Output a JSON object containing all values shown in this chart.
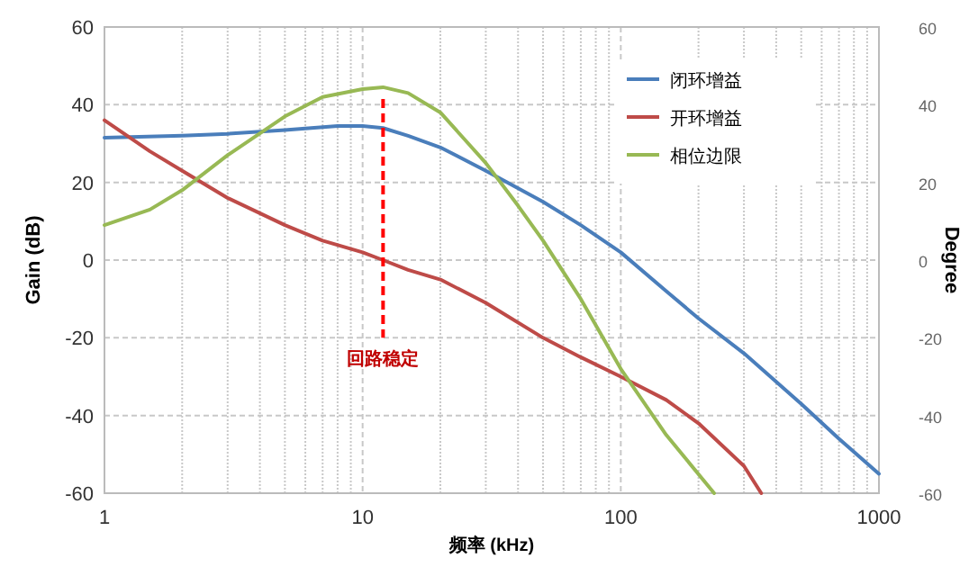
{
  "chart_data": {
    "type": "line",
    "xlabel": "频率 (kHz)",
    "ylabel": "Gain (dB)",
    "y2label": "Degree",
    "log": "x",
    "grid": true,
    "legend": "top right",
    "line_style": "solid",
    "marker": "none",
    "xlim": [
      1,
      1000
    ],
    "ylim": [
      -60,
      60
    ],
    "y2lim": [
      -60,
      60
    ],
    "xticks": [
      1,
      {
        "value": 2,
        "label": null
      },
      {
        "value": 3,
        "label": null
      },
      {
        "value": 4,
        "label": null
      },
      {
        "value": 5,
        "label": null
      },
      {
        "value": 6,
        "label": null
      },
      {
        "value": 7,
        "label": null
      },
      {
        "value": 8,
        "label": null
      },
      {
        "value": 9,
        "label": null
      },
      10,
      {
        "value": 20,
        "label": null
      },
      {
        "value": 30,
        "label": null
      },
      {
        "value": 40,
        "label": null
      },
      {
        "value": 50,
        "label": null
      },
      {
        "value": 60,
        "label": null
      },
      {
        "value": 70,
        "label": null
      },
      {
        "value": 80,
        "label": null
      },
      {
        "value": 90,
        "label": null
      },
      100,
      {
        "value": 200,
        "label": null
      },
      {
        "value": 300,
        "label": null
      },
      {
        "value": 400,
        "label": null
      },
      {
        "value": 500,
        "label": null
      },
      {
        "value": 600,
        "label": null
      },
      {
        "value": 700,
        "label": null
      },
      {
        "value": 800,
        "label": null
      },
      {
        "value": 900,
        "label": null
      },
      1000
    ],
    "yticks": [
      -60,
      -40,
      -20,
      0,
      20,
      40,
      60
    ],
    "y2ticks": [
      -60,
      -40,
      -20,
      0,
      20,
      40,
      60
    ],
    "series": [
      {
        "name": "闭环增益",
        "color": "#4a7ebb",
        "x": [
          1,
          2,
          3,
          5,
          8,
          10,
          12,
          15,
          20,
          30,
          50,
          70,
          100,
          150,
          200,
          300,
          500,
          700,
          1000
        ],
        "values": [
          31.5,
          32,
          32.5,
          33.5,
          34.5,
          34.5,
          34,
          32,
          29,
          23,
          15,
          9,
          2,
          -8,
          -15,
          -24,
          -37,
          -46,
          -55
        ]
      },
      {
        "name": "开环增益",
        "color": "#be4b48",
        "x": [
          1,
          1.5,
          2,
          3,
          5,
          7,
          10,
          12,
          15,
          20,
          30,
          50,
          70,
          100,
          150,
          200,
          300,
          350
        ],
        "values": [
          36,
          28,
          23,
          16,
          9,
          5,
          2,
          0,
          -2.5,
          -5,
          -11,
          -20,
          -25,
          -30,
          -36,
          -42,
          -53,
          -60
        ]
      },
      {
        "name": "相位边限",
        "color": "#98b954",
        "x": [
          1,
          1.5,
          2,
          3,
          5,
          7,
          10,
          12,
          15,
          20,
          30,
          40,
          50,
          70,
          100,
          150,
          230
        ],
        "values": [
          9,
          13,
          18,
          27,
          37,
          42,
          44,
          44.5,
          43,
          38,
          25,
          14,
          5,
          -10,
          -28,
          -45,
          -60
        ]
      }
    ],
    "ref_lines": [
      {
        "axis": "x",
        "value": 12,
        "label": "回路稳定",
        "color": "#ff0000",
        "line_style": "dashed"
      }
    ]
  }
}
